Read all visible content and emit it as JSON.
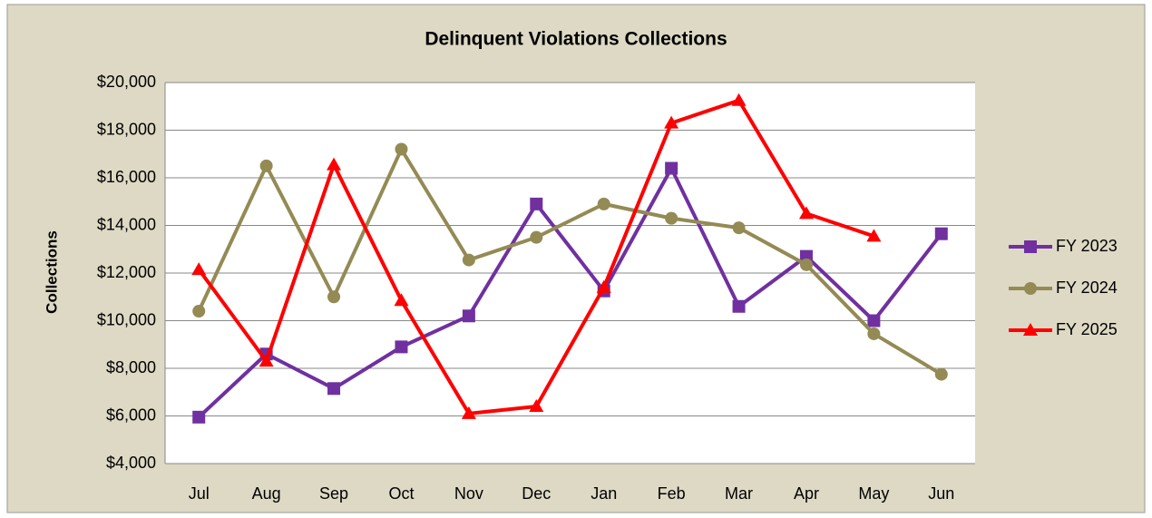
{
  "chart_data": {
    "type": "line",
    "title": "Delinquent Violations Collections",
    "y_label": "Collections",
    "categories": [
      "Jul",
      "Aug",
      "Sep",
      "Oct",
      "Nov",
      "Dec",
      "Jan",
      "Feb",
      "Mar",
      "Apr",
      "May",
      "Jun"
    ],
    "series": [
      {
        "name": "FY 2023",
        "color": "#7030a0",
        "marker": "square",
        "values": [
          5950,
          8600,
          7150,
          8900,
          10200,
          14900,
          11250,
          16400,
          10600,
          12700,
          10000,
          13650
        ]
      },
      {
        "name": "FY 2024",
        "color": "#948a54",
        "marker": "circle",
        "values": [
          10400,
          16500,
          11000,
          17200,
          12550,
          13500,
          14900,
          14300,
          13900,
          12350,
          9450,
          7750
        ]
      },
      {
        "name": "FY 2025",
        "color": "#ff0000",
        "marker": "triangle",
        "values": [
          12150,
          8300,
          16550,
          10850,
          6100,
          6400,
          11400,
          18300,
          19250,
          14500,
          13550,
          null
        ]
      }
    ],
    "ylim": [
      4000,
      20000
    ],
    "yticks": [
      {
        "value": 4000,
        "label": "$4,000"
      },
      {
        "value": 6000,
        "label": "$6,000"
      },
      {
        "value": 8000,
        "label": "$8,000"
      },
      {
        "value": 10000,
        "label": "$10,000"
      },
      {
        "value": 12000,
        "label": "$12,000"
      },
      {
        "value": 14000,
        "label": "$14,000"
      },
      {
        "value": 16000,
        "label": "$16,000"
      },
      {
        "value": 18000,
        "label": "$18,000"
      },
      {
        "value": 20000,
        "label": "$20,000"
      }
    ],
    "grid": true,
    "legend": "right"
  }
}
